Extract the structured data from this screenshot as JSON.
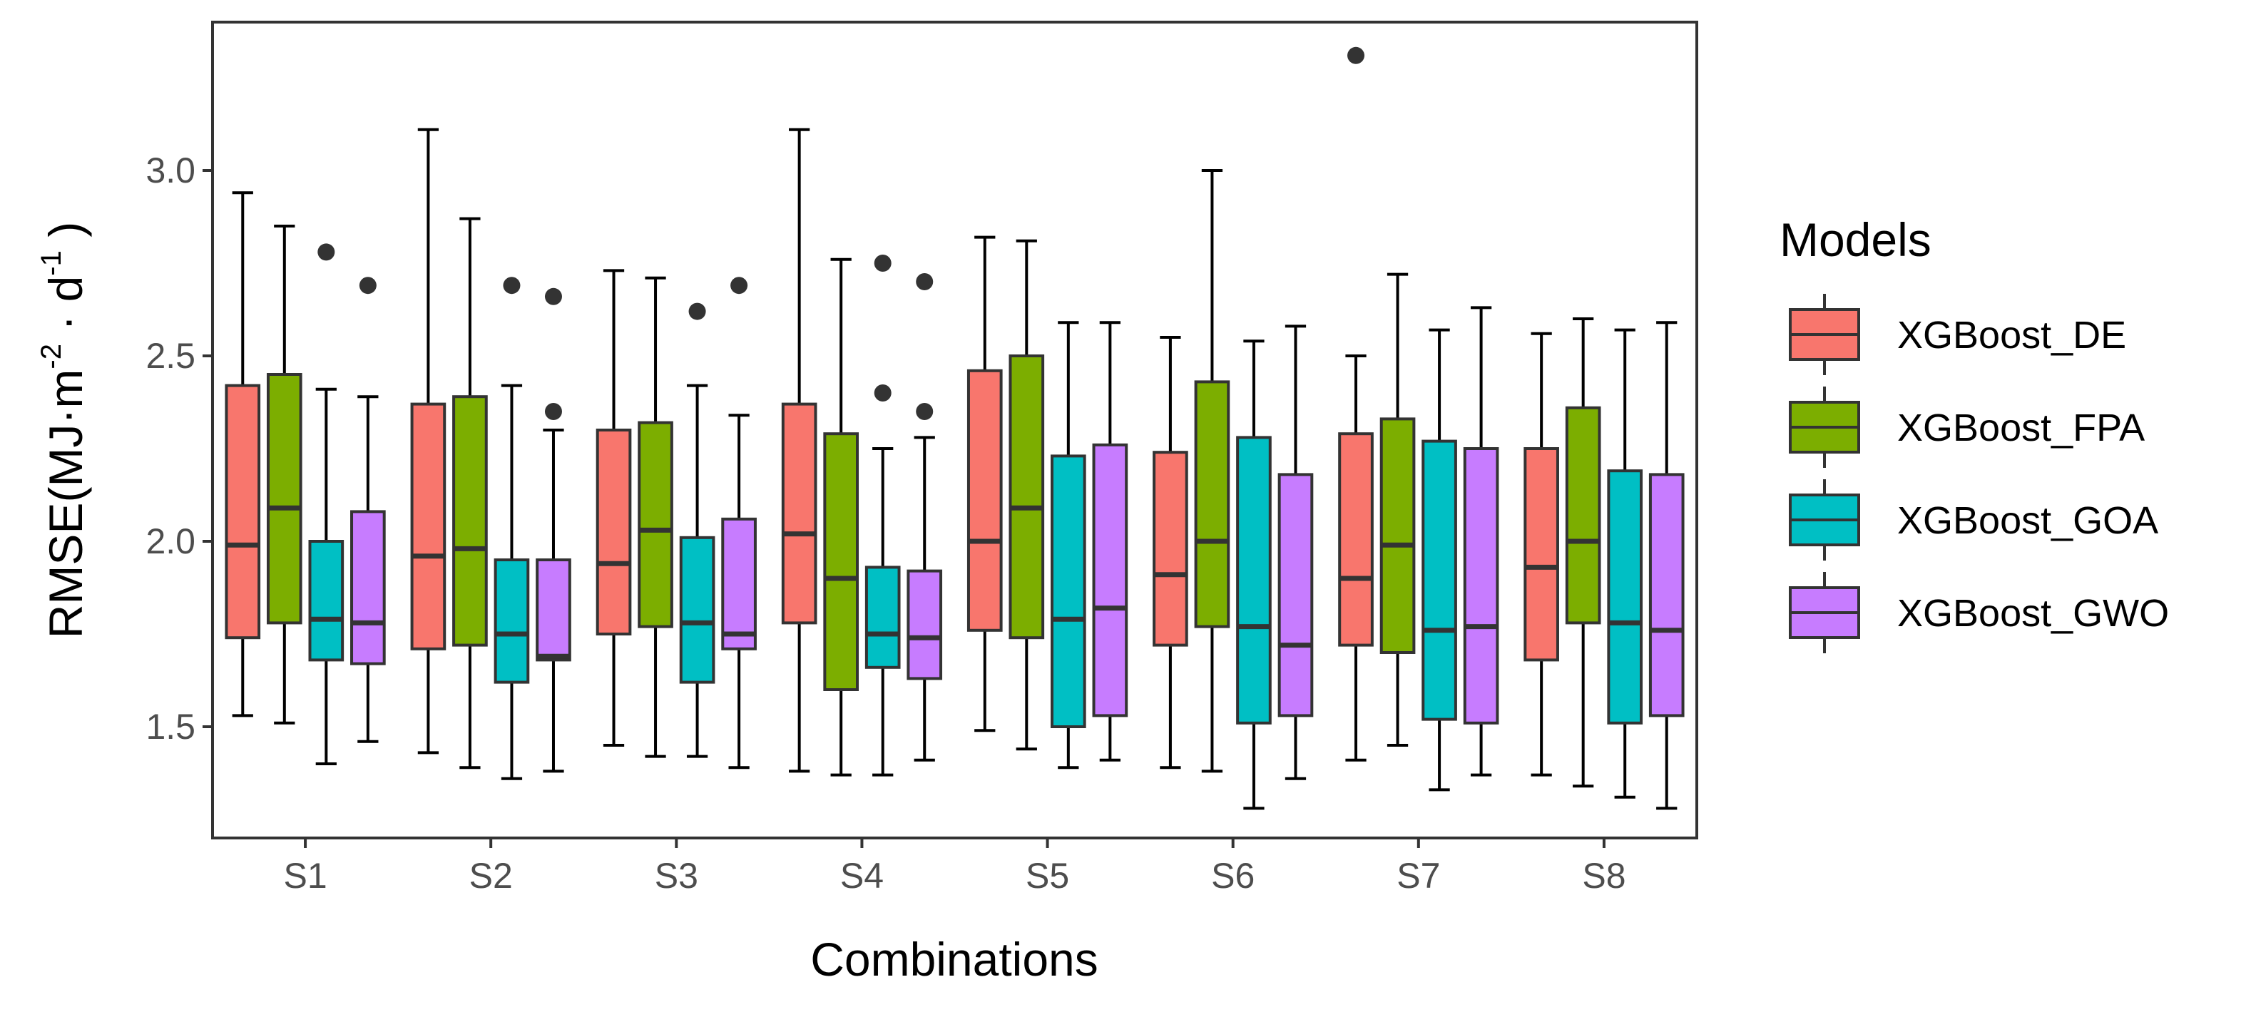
{
  "chart_data": {
    "type": "boxplot",
    "xlabel": "Combinations",
    "ylabel": {
      "prefix": "RMSE(MJ·m",
      "exp1": "-2",
      "middle": " · d",
      "exp2": "-1",
      "suffix": " )"
    },
    "ylim": [
      1.2,
      3.4
    ],
    "yticks": [
      "1.5",
      "2.0",
      "2.5",
      "3.0"
    ],
    "categories": [
      "S1",
      "S2",
      "S3",
      "S4",
      "S5",
      "S6",
      "S7",
      "S8"
    ],
    "legend": {
      "title": "Models",
      "position": "right"
    },
    "grid": false,
    "series": [
      {
        "name": "XGBoost_DE",
        "color": "#F8766D",
        "boxes": [
          {
            "min": 1.53,
            "q1": 1.74,
            "median": 1.99,
            "q3": 2.42,
            "max": 2.94,
            "outliers": []
          },
          {
            "min": 1.43,
            "q1": 1.71,
            "median": 1.96,
            "q3": 2.37,
            "max": 3.11,
            "outliers": []
          },
          {
            "min": 1.45,
            "q1": 1.75,
            "median": 1.94,
            "q3": 2.3,
            "max": 2.73,
            "outliers": []
          },
          {
            "min": 1.38,
            "q1": 1.78,
            "median": 2.02,
            "q3": 2.37,
            "max": 3.11,
            "outliers": []
          },
          {
            "min": 1.49,
            "q1": 1.76,
            "median": 2.0,
            "q3": 2.46,
            "max": 2.82,
            "outliers": []
          },
          {
            "min": 1.39,
            "q1": 1.72,
            "median": 1.91,
            "q3": 2.24,
            "max": 2.55,
            "outliers": []
          },
          {
            "min": 1.41,
            "q1": 1.72,
            "median": 1.9,
            "q3": 2.29,
            "max": 2.5,
            "outliers": [
              3.31
            ]
          },
          {
            "min": 1.37,
            "q1": 1.68,
            "median": 1.93,
            "q3": 2.25,
            "max": 2.56,
            "outliers": []
          }
        ]
      },
      {
        "name": "XGBoost_FPA",
        "color": "#7CAE00",
        "boxes": [
          {
            "min": 1.51,
            "q1": 1.78,
            "median": 2.09,
            "q3": 2.45,
            "max": 2.85,
            "outliers": []
          },
          {
            "min": 1.39,
            "q1": 1.72,
            "median": 1.98,
            "q3": 2.39,
            "max": 2.87,
            "outliers": []
          },
          {
            "min": 1.42,
            "q1": 1.77,
            "median": 2.03,
            "q3": 2.32,
            "max": 2.71,
            "outliers": []
          },
          {
            "min": 1.37,
            "q1": 1.6,
            "median": 1.9,
            "q3": 2.29,
            "max": 2.76,
            "outliers": []
          },
          {
            "min": 1.44,
            "q1": 1.74,
            "median": 2.09,
            "q3": 2.5,
            "max": 2.81,
            "outliers": []
          },
          {
            "min": 1.38,
            "q1": 1.77,
            "median": 2.0,
            "q3": 2.43,
            "max": 3.0,
            "outliers": []
          },
          {
            "min": 1.45,
            "q1": 1.7,
            "median": 1.99,
            "q3": 2.33,
            "max": 2.72,
            "outliers": []
          },
          {
            "min": 1.34,
            "q1": 1.78,
            "median": 2.0,
            "q3": 2.36,
            "max": 2.6,
            "outliers": []
          }
        ]
      },
      {
        "name": "XGBoost_GOA",
        "color": "#00BFC4",
        "boxes": [
          {
            "min": 1.4,
            "q1": 1.68,
            "median": 1.79,
            "q3": 2.0,
            "max": 2.41,
            "outliers": [
              2.78
            ]
          },
          {
            "min": 1.36,
            "q1": 1.62,
            "median": 1.75,
            "q3": 1.95,
            "max": 2.42,
            "outliers": [
              2.69
            ]
          },
          {
            "min": 1.42,
            "q1": 1.62,
            "median": 1.78,
            "q3": 2.01,
            "max": 2.42,
            "outliers": [
              2.62
            ]
          },
          {
            "min": 1.37,
            "q1": 1.66,
            "median": 1.75,
            "q3": 1.93,
            "max": 2.25,
            "outliers": [
              2.75,
              2.4
            ]
          },
          {
            "min": 1.39,
            "q1": 1.5,
            "median": 1.79,
            "q3": 2.23,
            "max": 2.59,
            "outliers": []
          },
          {
            "min": 1.28,
            "q1": 1.51,
            "median": 1.77,
            "q3": 2.28,
            "max": 2.54,
            "outliers": []
          },
          {
            "min": 1.33,
            "q1": 1.52,
            "median": 1.76,
            "q3": 2.27,
            "max": 2.57,
            "outliers": []
          },
          {
            "min": 1.31,
            "q1": 1.51,
            "median": 1.78,
            "q3": 2.19,
            "max": 2.57,
            "outliers": []
          }
        ]
      },
      {
        "name": "XGBoost_GWO",
        "color": "#C77CFF",
        "boxes": [
          {
            "min": 1.46,
            "q1": 1.67,
            "median": 1.78,
            "q3": 2.08,
            "max": 2.39,
            "outliers": [
              2.69
            ]
          },
          {
            "min": 1.38,
            "q1": 1.68,
            "median": 1.69,
            "q3": 1.95,
            "max": 2.3,
            "outliers": [
              2.66,
              2.35
            ]
          },
          {
            "min": 1.39,
            "q1": 1.71,
            "median": 1.75,
            "q3": 2.06,
            "max": 2.34,
            "outliers": [
              2.69
            ]
          },
          {
            "min": 1.41,
            "q1": 1.63,
            "median": 1.74,
            "q3": 1.92,
            "max": 2.28,
            "outliers": [
              2.7,
              2.35
            ]
          },
          {
            "min": 1.41,
            "q1": 1.53,
            "median": 1.82,
            "q3": 2.26,
            "max": 2.59,
            "outliers": []
          },
          {
            "min": 1.36,
            "q1": 1.53,
            "median": 1.72,
            "q3": 2.18,
            "max": 2.58,
            "outliers": []
          },
          {
            "min": 1.37,
            "q1": 1.51,
            "median": 1.77,
            "q3": 2.25,
            "max": 2.63,
            "outliers": []
          },
          {
            "min": 1.28,
            "q1": 1.53,
            "median": 1.76,
            "q3": 2.18,
            "max": 2.59,
            "outliers": []
          }
        ]
      }
    ]
  }
}
